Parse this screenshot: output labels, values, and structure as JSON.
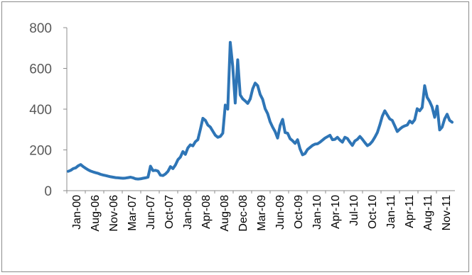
{
  "chart_data": {
    "type": "line",
    "title": "",
    "xlabel": "",
    "ylabel": "",
    "ylim": [
      0,
      800
    ],
    "yticks": [
      0,
      200,
      400,
      600,
      800
    ],
    "grid": false,
    "legend": "none",
    "x_tick_labels": [
      "Jan-00",
      "Aug-06",
      "Nov-06",
      "Mar-07",
      "Jun-07",
      "Oct-07",
      "Jan-08",
      "Apr-08",
      "Aug-08",
      "Dec-08",
      "Mar-09",
      "Jun-09",
      "Oct-09",
      "Jan-10",
      "Apr-10",
      "Jul-10",
      "Oct-10",
      "Jan-11",
      "Apr-11",
      "Aug-11",
      "Nov-11"
    ],
    "line_color": "#2e75b6",
    "series": [
      {
        "values": [
          95,
          100,
          108,
          112,
          122,
          128,
          118,
          110,
          102,
          96,
          92,
          88,
          85,
          80,
          77,
          74,
          71,
          68,
          66,
          64,
          63,
          62,
          61,
          62,
          64,
          66,
          63,
          58,
          57,
          58,
          61,
          63,
          66,
          120,
          98,
          100,
          96,
          76,
          74,
          82,
          95,
          118,
          108,
          126,
          152,
          165,
          192,
          178,
          210,
          225,
          220,
          240,
          250,
          300,
          355,
          345,
          322,
          312,
          292,
          272,
          262,
          266,
          282,
          420,
          400,
          728,
          610,
          430,
          642,
          470,
          450,
          440,
          428,
          450,
          500,
          528,
          515,
          472,
          448,
          402,
          378,
          338,
          312,
          290,
          258,
          320,
          350,
          285,
          282,
          255,
          245,
          232,
          250,
          205,
          176,
          182,
          202,
          212,
          222,
          228,
          230,
          238,
          248,
          258,
          265,
          272,
          250,
          252,
          262,
          248,
          238,
          262,
          256,
          238,
          222,
          244,
          252,
          266,
          252,
          236,
          221,
          228,
          242,
          262,
          285,
          322,
          365,
          392,
          372,
          352,
          345,
          318,
          290,
          302,
          312,
          318,
          322,
          342,
          332,
          348,
          402,
          392,
          408,
          515,
          458,
          438,
          410,
          360,
          415,
          298,
          312,
          352,
          375,
          345,
          336
        ]
      }
    ]
  }
}
